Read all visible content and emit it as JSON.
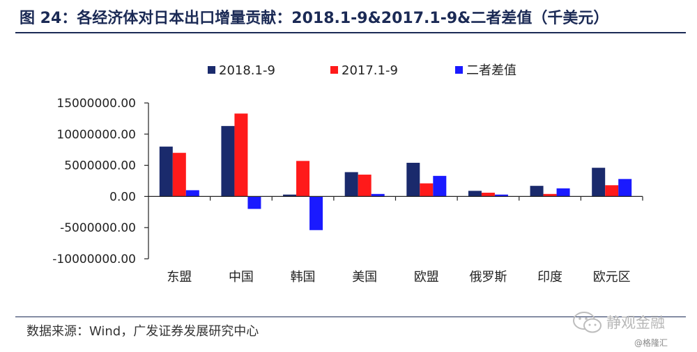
{
  "figure": {
    "title": "图 24：各经济体对日本出口增量贡献：2018.1-9&2017.1-9&二者差值（千美元）",
    "source": "数据来源：Wind，广发证券发展研究中心",
    "watermark": "静观金融",
    "credit": "@格隆汇"
  },
  "chart_data": {
    "type": "bar",
    "title": "图 24：各经济体对日本出口增量贡献：2018.1-9&2017.1-9&二者差值（千美元）",
    "categories": [
      "东盟",
      "中国",
      "韩国",
      "美国",
      "欧盟",
      "俄罗斯",
      "印度",
      "欧元区"
    ],
    "series": [
      {
        "name": "2018.1-9",
        "color": "#1a2a6c",
        "values": [
          8000000,
          11300000,
          300000,
          3900000,
          5400000,
          900000,
          1700000,
          4600000
        ]
      },
      {
        "name": "2017.1-9",
        "color": "#ff1a1a",
        "values": [
          7000000,
          13300000,
          5700000,
          3500000,
          2100000,
          600000,
          400000,
          1800000
        ]
      },
      {
        "name": "二者差值",
        "color": "#1a1aff",
        "values": [
          1000000,
          -2000000,
          -5400000,
          400000,
          3300000,
          300000,
          1300000,
          2800000
        ]
      }
    ],
    "ylim": [
      -10000000,
      15000000
    ],
    "yticks": [
      -10000000,
      -5000000,
      0,
      5000000,
      10000000,
      15000000
    ],
    "ytick_labels": [
      "-10000000.00",
      "-5000000.00",
      "0.00",
      "5000000.00",
      "10000000.00",
      "15000000.00"
    ],
    "legend": "top",
    "grid": false
  }
}
